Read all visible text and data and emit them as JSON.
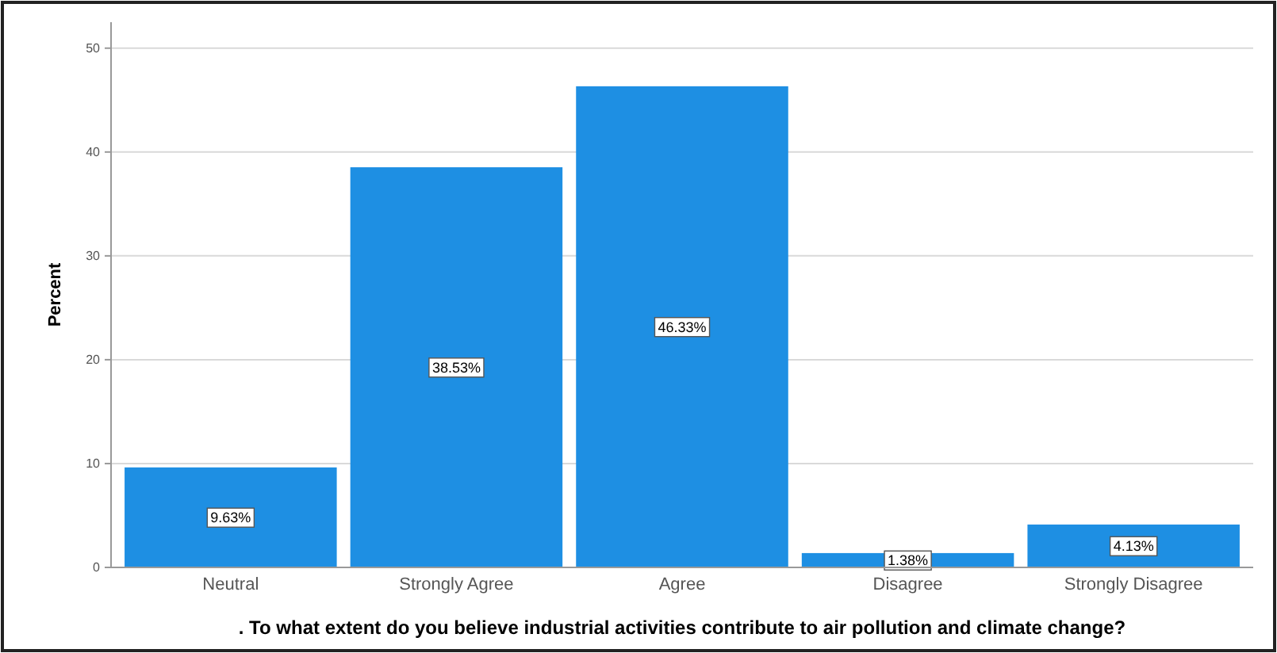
{
  "chart_data": {
    "type": "bar",
    "xlabel": ". To what extent do you believe industrial activities contribute to air pollution and climate change?",
    "ylabel": "Percent",
    "categories": [
      "Neutral",
      "Strongly Agree",
      "Agree",
      "Disagree",
      "Strongly Disagree"
    ],
    "values": [
      9.63,
      38.53,
      46.33,
      1.38,
      4.13
    ],
    "value_labels": [
      "9.63%",
      "38.53%",
      "46.33%",
      "1.38%",
      "4.13%"
    ],
    "color": "#1e8fe3",
    "ylim": [
      0,
      52.5
    ],
    "yticks": [
      0,
      10,
      20,
      30,
      40,
      50
    ],
    "grid": "y"
  }
}
